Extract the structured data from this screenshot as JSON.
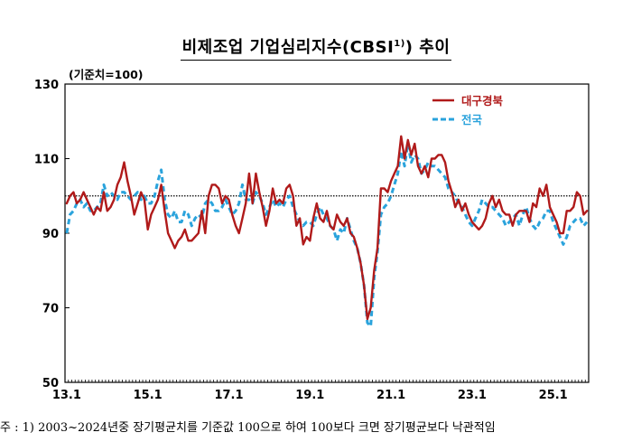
{
  "title": {
    "main": "비제조업 기업심리지수(CBSI",
    "sup": "1)",
    "tail": ") 추이"
  },
  "unit": "(기준치=100)",
  "note": "주 : 1) 2003~2024년중 장기평균치를 기준값 100으로 하여 100보다 크면 장기평균보다 낙관적임",
  "chart_data": {
    "type": "line",
    "ylim": [
      50,
      130
    ],
    "yticks": [
      "130",
      "110",
      "90",
      "70",
      "50"
    ],
    "ytick_values": [
      130,
      110,
      90,
      70,
      50
    ],
    "xticks": [
      "13.1",
      "15.1",
      "17.1",
      "19.1",
      "21.1",
      "23.1",
      "25.1"
    ],
    "xtick_positions": [
      0,
      24,
      48,
      72,
      96,
      120,
      144
    ],
    "reference_line": 100,
    "legend_position": "top-right",
    "series": [
      {
        "name": "대구경북",
        "color": "#b01a1a",
        "style": "solid",
        "values": [
          98,
          100,
          101,
          98,
          99,
          101,
          99,
          97,
          95,
          97,
          96,
          101,
          96,
          97,
          99,
          103,
          105,
          109,
          104,
          100,
          95,
          98,
          101,
          99,
          91,
          95,
          97,
          99,
          103,
          96,
          90,
          88,
          86,
          88,
          89,
          91,
          88,
          88,
          89,
          90,
          96,
          90,
          100,
          103,
          103,
          102,
          98,
          100,
          99,
          95,
          92,
          90,
          94,
          98,
          106,
          98,
          106,
          101,
          97,
          92,
          96,
          102,
          98,
          99,
          98,
          102,
          103,
          100,
          92,
          94,
          87,
          89,
          88,
          94,
          98,
          94,
          93,
          96,
          92,
          91,
          95,
          93,
          92,
          94,
          90,
          89,
          86,
          82,
          76,
          67,
          70,
          80,
          86,
          102,
          102,
          101,
          104,
          106,
          108,
          116,
          110,
          115,
          111,
          114,
          108,
          106,
          108,
          105,
          110,
          110,
          111,
          111,
          109,
          104,
          101,
          97,
          99,
          96,
          98,
          95,
          93,
          92,
          91,
          92,
          94,
          98,
          100,
          97,
          99,
          96,
          95,
          95,
          92,
          95,
          96,
          96,
          96,
          93,
          98,
          97,
          102,
          100,
          103,
          97,
          95,
          93,
          90,
          90,
          96,
          96,
          97,
          101,
          100,
          95,
          96
        ]
      },
      {
        "name": "전국",
        "color": "#2aa3dc",
        "style": "dashed",
        "values": [
          90,
          95,
          96,
          98,
          99,
          97,
          98,
          96,
          96,
          97,
          98,
          103,
          100,
          101,
          100,
          99,
          101,
          101,
          100,
          99,
          100,
          101,
          99,
          100,
          98,
          98,
          100,
          104,
          107,
          99,
          95,
          94,
          96,
          93,
          93,
          96,
          95,
          92,
          94,
          95,
          94,
          98,
          99,
          98,
          96,
          96,
          97,
          99,
          97,
          95,
          96,
          98,
          103,
          99,
          99,
          98,
          101,
          100,
          98,
          95,
          97,
          99,
          97,
          98,
          97,
          99,
          100,
          97,
          95,
          93,
          92,
          93,
          93,
          92,
          95,
          97,
          95,
          94,
          92,
          91,
          88,
          91,
          90,
          94,
          91,
          88,
          86,
          82,
          76,
          66,
          65,
          78,
          85,
          95,
          97,
          98,
          100,
          103,
          106,
          112,
          108,
          114,
          109,
          111,
          110,
          106,
          107,
          109,
          108,
          108,
          107,
          106,
          105,
          102,
          101,
          100,
          98,
          97,
          95,
          93,
          92,
          94,
          96,
          99,
          98,
          97,
          97,
          96,
          95,
          94,
          92,
          93,
          94,
          95,
          92,
          95,
          97,
          94,
          92,
          91,
          93,
          94,
          96,
          96,
          93,
          91,
          89,
          87,
          89,
          92,
          93,
          94,
          94,
          92,
          93
        ]
      }
    ]
  }
}
